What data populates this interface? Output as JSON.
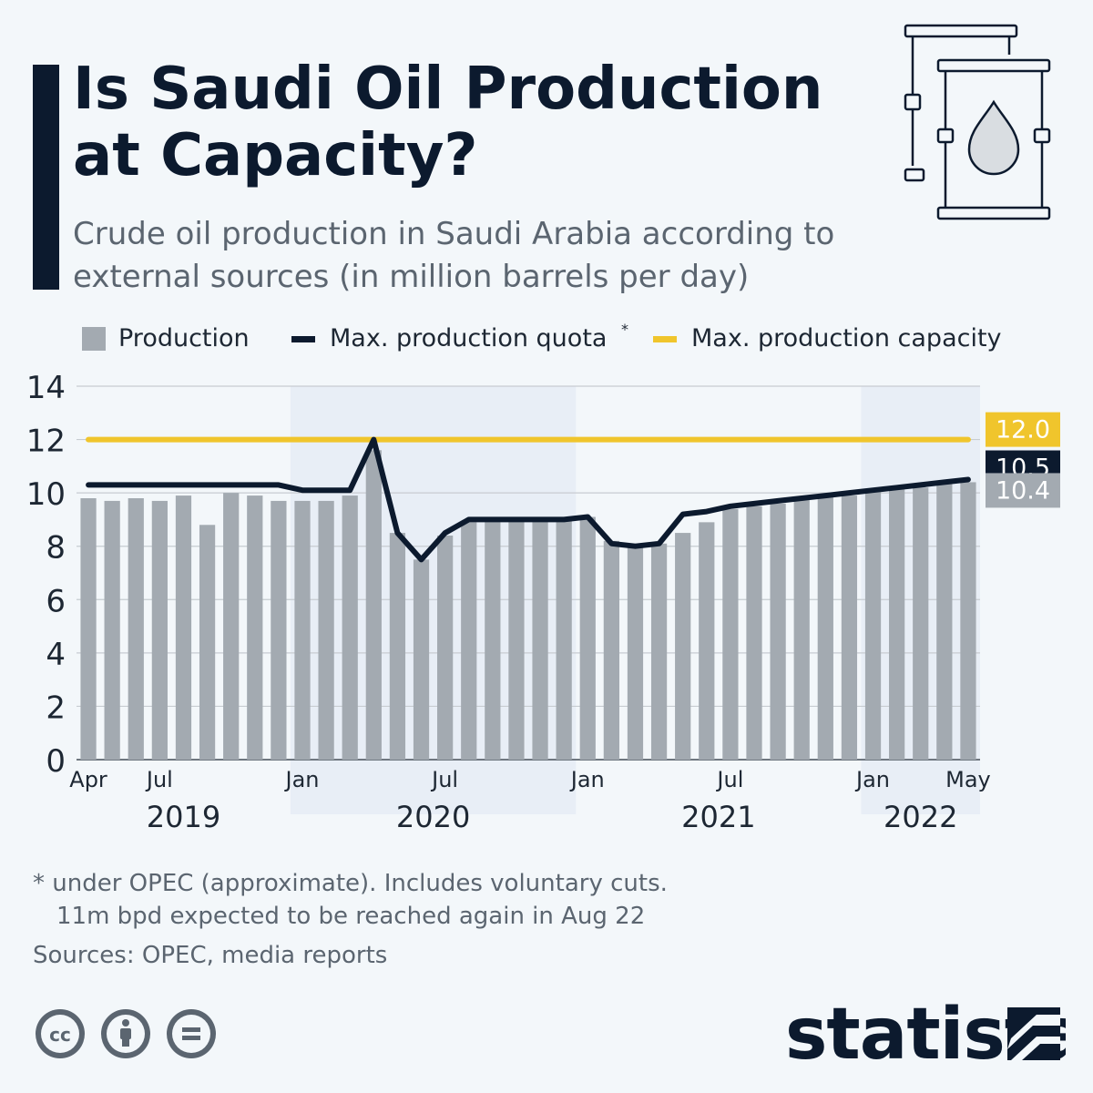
{
  "header": {
    "title_line1": "Is Saudi Oil Production",
    "title_line2": "at Capacity?",
    "subtitle_line1": "Crude oil production in Saudi Arabia according to",
    "subtitle_line2": "external sources (in million barrels per day)"
  },
  "legend": {
    "production": "Production",
    "quota": "Max. production quota",
    "quota_mark": "*",
    "capacity": "Max. production capacity"
  },
  "colors": {
    "production": "#a3aab1",
    "quota": "#0c1a2e",
    "capacity": "#f0c52c",
    "shade": "#e8eef6",
    "grid": "#c7ccd1"
  },
  "footer": {
    "note_line1": "* under OPEC (approximate). Includes voluntary cuts.",
    "note_line2": "11m bpd expected to be reached again in Aug 22",
    "sources": "Sources: OPEC, media reports"
  },
  "icons": {
    "license": [
      "cc-icon",
      "attribution-icon",
      "no-derivatives-icon"
    ],
    "brand": "statista",
    "header": "oil-barrel-icon"
  },
  "chart_data": {
    "type": "bar",
    "x": [
      "Apr 2019",
      "May 2019",
      "Jun 2019",
      "Jul 2019",
      "Aug 2019",
      "Sep 2019",
      "Oct 2019",
      "Nov 2019",
      "Dec 2019",
      "Jan 2020",
      "Feb 2020",
      "Mar 2020",
      "Apr 2020",
      "May 2020",
      "Jun 2020",
      "Jul 2020",
      "Aug 2020",
      "Sep 2020",
      "Oct 2020",
      "Nov 2020",
      "Dec 2020",
      "Jan 2021",
      "Feb 2021",
      "Mar 2021",
      "Apr 2021",
      "May 2021",
      "Jun 2021",
      "Jul 2021",
      "Aug 2021",
      "Sep 2021",
      "Oct 2021",
      "Nov 2021",
      "Dec 2021",
      "Jan 2022",
      "Feb 2022",
      "Mar 2022",
      "Apr 2022",
      "May 2022"
    ],
    "series": [
      {
        "name": "Production",
        "kind": "bar",
        "values": [
          9.8,
          9.7,
          9.8,
          9.7,
          9.9,
          8.8,
          10.0,
          9.9,
          9.7,
          9.7,
          9.7,
          9.9,
          11.6,
          8.5,
          7.5,
          8.4,
          8.9,
          9.0,
          9.0,
          9.0,
          9.0,
          9.1,
          8.2,
          8.1,
          8.1,
          8.5,
          8.9,
          9.4,
          9.5,
          9.6,
          9.8,
          9.9,
          9.9,
          10.1,
          10.2,
          10.2,
          10.4,
          10.4
        ]
      },
      {
        "name": "Max. production quota*",
        "kind": "line",
        "values": [
          10.3,
          10.3,
          10.3,
          10.3,
          10.3,
          10.3,
          10.3,
          10.3,
          10.3,
          10.1,
          10.1,
          10.1,
          12.0,
          8.5,
          7.5,
          8.5,
          9.0,
          9.0,
          9.0,
          9.0,
          9.0,
          9.1,
          8.1,
          8.0,
          8.1,
          9.2,
          9.3,
          9.5,
          9.6,
          9.7,
          9.8,
          9.9,
          10.0,
          10.1,
          10.2,
          10.3,
          10.4,
          10.5
        ]
      },
      {
        "name": "Max. production capacity",
        "kind": "line",
        "value": 12.0
      }
    ],
    "ylim": [
      0,
      14
    ],
    "yticks": [
      "0",
      "2",
      "4",
      "6",
      "8",
      "10",
      "12",
      "14"
    ],
    "xtick_labels": [
      {
        "label": "Apr",
        "index": 0
      },
      {
        "label": "Jul",
        "index": 3
      },
      {
        "label": "Jan",
        "index": 9
      },
      {
        "label": "Jul",
        "index": 15
      },
      {
        "label": "Jan",
        "index": 21
      },
      {
        "label": "Jul",
        "index": 27
      },
      {
        "label": "Jan",
        "index": 33
      },
      {
        "label": "May",
        "index": 37
      }
    ],
    "year_labels": [
      {
        "label": "2019",
        "start": 0,
        "end": 8,
        "shaded": false
      },
      {
        "label": "2020",
        "start": 9,
        "end": 20,
        "shaded": true
      },
      {
        "label": "2021",
        "start": 21,
        "end": 32,
        "shaded": false
      },
      {
        "label": "2022",
        "start": 33,
        "end": 37,
        "shaded": true
      }
    ],
    "end_labels": {
      "capacity": "12.0",
      "quota": "10.5",
      "production": "10.4"
    },
    "grid": true,
    "legend_position": "top"
  }
}
